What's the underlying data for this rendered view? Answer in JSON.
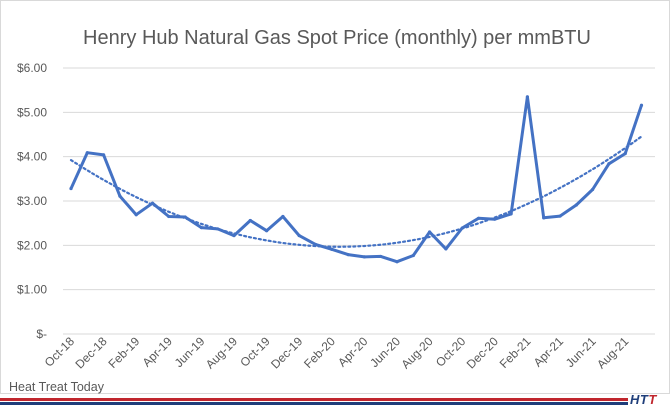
{
  "source_label": "Heat Treat Today",
  "logo": {
    "part1": "HT",
    "part2": "T"
  },
  "colors": {
    "series": "#4472c4",
    "trend": "#4472c4",
    "grid": "#d9d9d9",
    "text": "#595959",
    "brand_red": "#c0262d",
    "brand_blue": "#1f3e7a"
  },
  "chart_data": {
    "type": "line",
    "title": "Henry Hub Natural Gas Spot Price (monthly) per mmBTU",
    "xlabel": "",
    "ylabel": "",
    "ylim": [
      0,
      6
    ],
    "yticks": [
      0,
      1,
      2,
      3,
      4,
      5,
      6
    ],
    "ytick_labels": [
      "$-",
      "$1.00",
      "$2.00",
      "$3.00",
      "$4.00",
      "$5.00",
      "$6.00"
    ],
    "grid": true,
    "legend": "none",
    "x": [
      "Oct-18",
      "Nov-18",
      "Dec-18",
      "Jan-19",
      "Feb-19",
      "Mar-19",
      "Apr-19",
      "May-19",
      "Jun-19",
      "Jul-19",
      "Aug-19",
      "Sep-19",
      "Oct-19",
      "Nov-19",
      "Dec-19",
      "Jan-20",
      "Feb-20",
      "Mar-20",
      "Apr-20",
      "May-20",
      "Jun-20",
      "Jul-20",
      "Aug-20",
      "Sep-20",
      "Oct-20",
      "Nov-20",
      "Dec-20",
      "Jan-21",
      "Feb-21",
      "Mar-21",
      "Apr-21",
      "May-21",
      "Jun-21",
      "Jul-21",
      "Aug-21",
      "Sep-21"
    ],
    "xtick_labels": [
      "Oct-18",
      "Dec-18",
      "Feb-19",
      "Apr-19",
      "Jun-19",
      "Aug-19",
      "Oct-19",
      "Dec-19",
      "Feb-20",
      "Apr-20",
      "Jun-20",
      "Aug-20",
      "Oct-20",
      "Dec-20",
      "Feb-21",
      "Apr-21",
      "Jun-21",
      "Aug-21"
    ],
    "series": [
      {
        "values": [
          3.28,
          4.09,
          4.04,
          3.11,
          2.69,
          2.95,
          2.65,
          2.64,
          2.4,
          2.37,
          2.22,
          2.56,
          2.33,
          2.65,
          2.22,
          2.02,
          1.91,
          1.79,
          1.74,
          1.75,
          1.63,
          1.77,
          2.3,
          1.92,
          2.39,
          2.61,
          2.59,
          2.71,
          5.35,
          2.62,
          2.66,
          2.91,
          3.26,
          3.84,
          4.07,
          5.16
        ]
      }
    ],
    "trendline": {
      "type": "polynomial",
      "style": "dotted"
    }
  }
}
